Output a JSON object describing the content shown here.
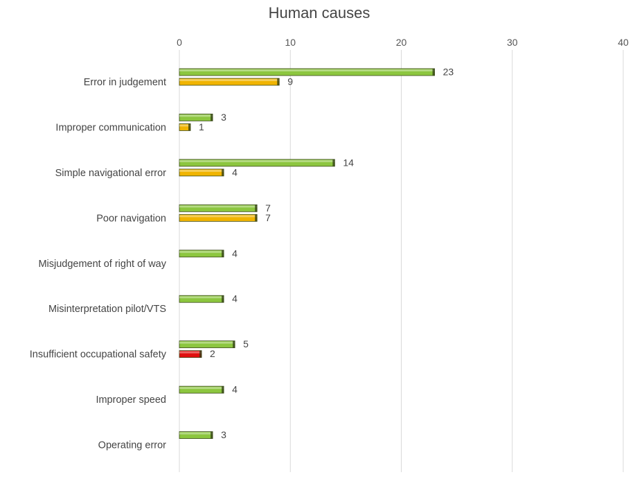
{
  "chart_data": {
    "type": "bar",
    "orientation": "horizontal",
    "title": "Human causes",
    "xlabel": "",
    "ylabel": "",
    "xlim": [
      0,
      40
    ],
    "x_ticks": [
      "0",
      "10",
      "20",
      "30",
      "40"
    ],
    "grid": true,
    "categories": [
      "Error in judgement",
      "Improper communication",
      "Simple navigational error",
      "Poor navigation",
      "Misjudgement of right of way",
      "Misinterpretation pilot/VTS",
      "Insufficient occupational safety",
      "Improper speed",
      "Operating error"
    ],
    "series": [
      {
        "color": "#8cc63f",
        "values": [
          23,
          3,
          14,
          7,
          4,
          4,
          5,
          4,
          3
        ]
      },
      {
        "color": "#f0b400",
        "values": [
          9,
          1,
          4,
          7,
          null,
          null,
          null,
          null,
          null
        ]
      },
      {
        "color": "#e01010",
        "values": [
          null,
          null,
          null,
          null,
          null,
          null,
          2,
          null,
          null
        ]
      }
    ]
  }
}
